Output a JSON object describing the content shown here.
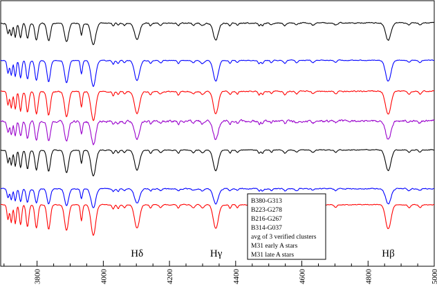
{
  "chart_data": {
    "type": "line",
    "title": "",
    "xlabel": "",
    "ylabel": "",
    "xlim": [
      3690,
      5000
    ],
    "x_ticks": [
      3800,
      4000,
      4200,
      4400,
      4600,
      4800,
      5000
    ],
    "x_tick_labels": [
      "3800",
      "4000",
      "4200",
      "4400",
      "4600",
      "4800",
      "5000"
    ],
    "grid": false,
    "legend_position": "lower-right",
    "legend_entries": [
      "B380-G313",
      "B223-G278",
      "B216-G267",
      "B314-G037",
      "avg of 3 verified clusters",
      "M31 early A stars",
      "M31 late A stars"
    ],
    "line_annotations": [
      {
        "label": "Hδ",
        "x": 4102
      },
      {
        "label": "Hγ",
        "x": 4341
      },
      {
        "label": "Hβ",
        "x": 4861
      }
    ],
    "series": [
      {
        "color": "#000000",
        "offset": 34,
        "depth": 0.75,
        "noise": 0.5,
        "slope": 0.06
      },
      {
        "color": "#0000ff",
        "offset": 88,
        "depth": 0.9,
        "noise": 0.35,
        "slope": 0.05
      },
      {
        "color": "#ff0000",
        "offset": 133,
        "depth": 1.0,
        "noise": 0.5,
        "slope": 0.05
      },
      {
        "color": "#9900cc",
        "offset": 176,
        "depth": 0.8,
        "noise": 1.0,
        "slope": 0.05
      },
      {
        "color": "#000000",
        "offset": 218,
        "depth": 0.9,
        "noise": 0.35,
        "slope": 0.05
      },
      {
        "color": "#0000ff",
        "offset": 274,
        "depth": 0.65,
        "noise": 0.45,
        "slope": 0.03
      },
      {
        "color": "#ff0000",
        "offset": 297,
        "depth": 1.05,
        "noise": 0.35,
        "slope": 0.02
      }
    ]
  }
}
